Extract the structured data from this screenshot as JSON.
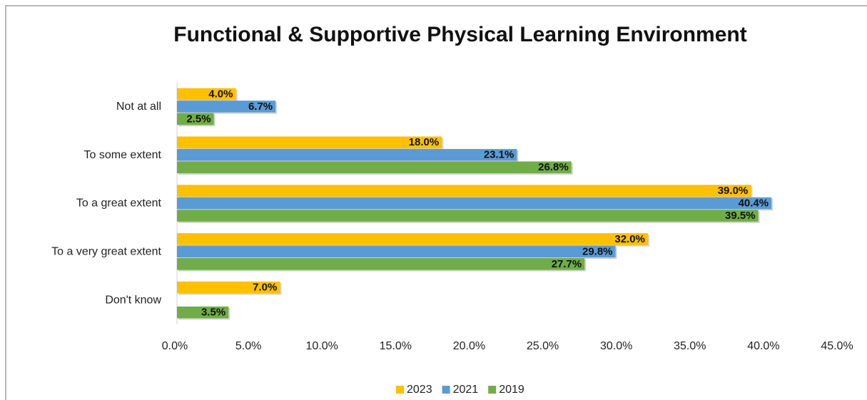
{
  "chart_data": {
    "type": "hbar",
    "title": "Functional & Supportive Physical Learning Environment",
    "categories": [
      "Not at all",
      "To some extent",
      "To a great extent",
      "To a very great extent",
      "Don't know"
    ],
    "series": [
      {
        "name": "2023",
        "color": "#FFC000",
        "values": [
          4.0,
          18.0,
          39.0,
          32.0,
          7.0
        ],
        "value_labels": [
          "4.0%",
          "18.0%",
          "39.0%",
          "32.0%",
          "7.0%"
        ]
      },
      {
        "name": "2021",
        "color": "#5B9BD5",
        "values": [
          6.7,
          23.1,
          40.4,
          29.8,
          null
        ],
        "value_labels": [
          "6.7%",
          "23.1%",
          "40.4%",
          "29.8%",
          null
        ]
      },
      {
        "name": "2019",
        "color": "#70AD47",
        "values": [
          2.5,
          26.8,
          39.5,
          27.7,
          3.5
        ],
        "value_labels": [
          "2.5%",
          "26.8%",
          "39.5%",
          "27.7%",
          "3.5%"
        ]
      }
    ],
    "xlim": [
      0,
      45
    ],
    "xticks": [
      {
        "value": 0,
        "label": "0.0%"
      },
      {
        "value": 5,
        "label": "5.0%"
      },
      {
        "value": 10,
        "label": "10.0%"
      },
      {
        "value": 15,
        "label": "15.0%"
      },
      {
        "value": 20,
        "label": "20.0%"
      },
      {
        "value": 25,
        "label": "25.0%"
      },
      {
        "value": 30,
        "label": "30.0%"
      },
      {
        "value": 35,
        "label": "35.0%"
      },
      {
        "value": 40,
        "label": "40.0%"
      },
      {
        "value": 45,
        "label": "45.0%"
      }
    ],
    "legend": "bottom"
  }
}
